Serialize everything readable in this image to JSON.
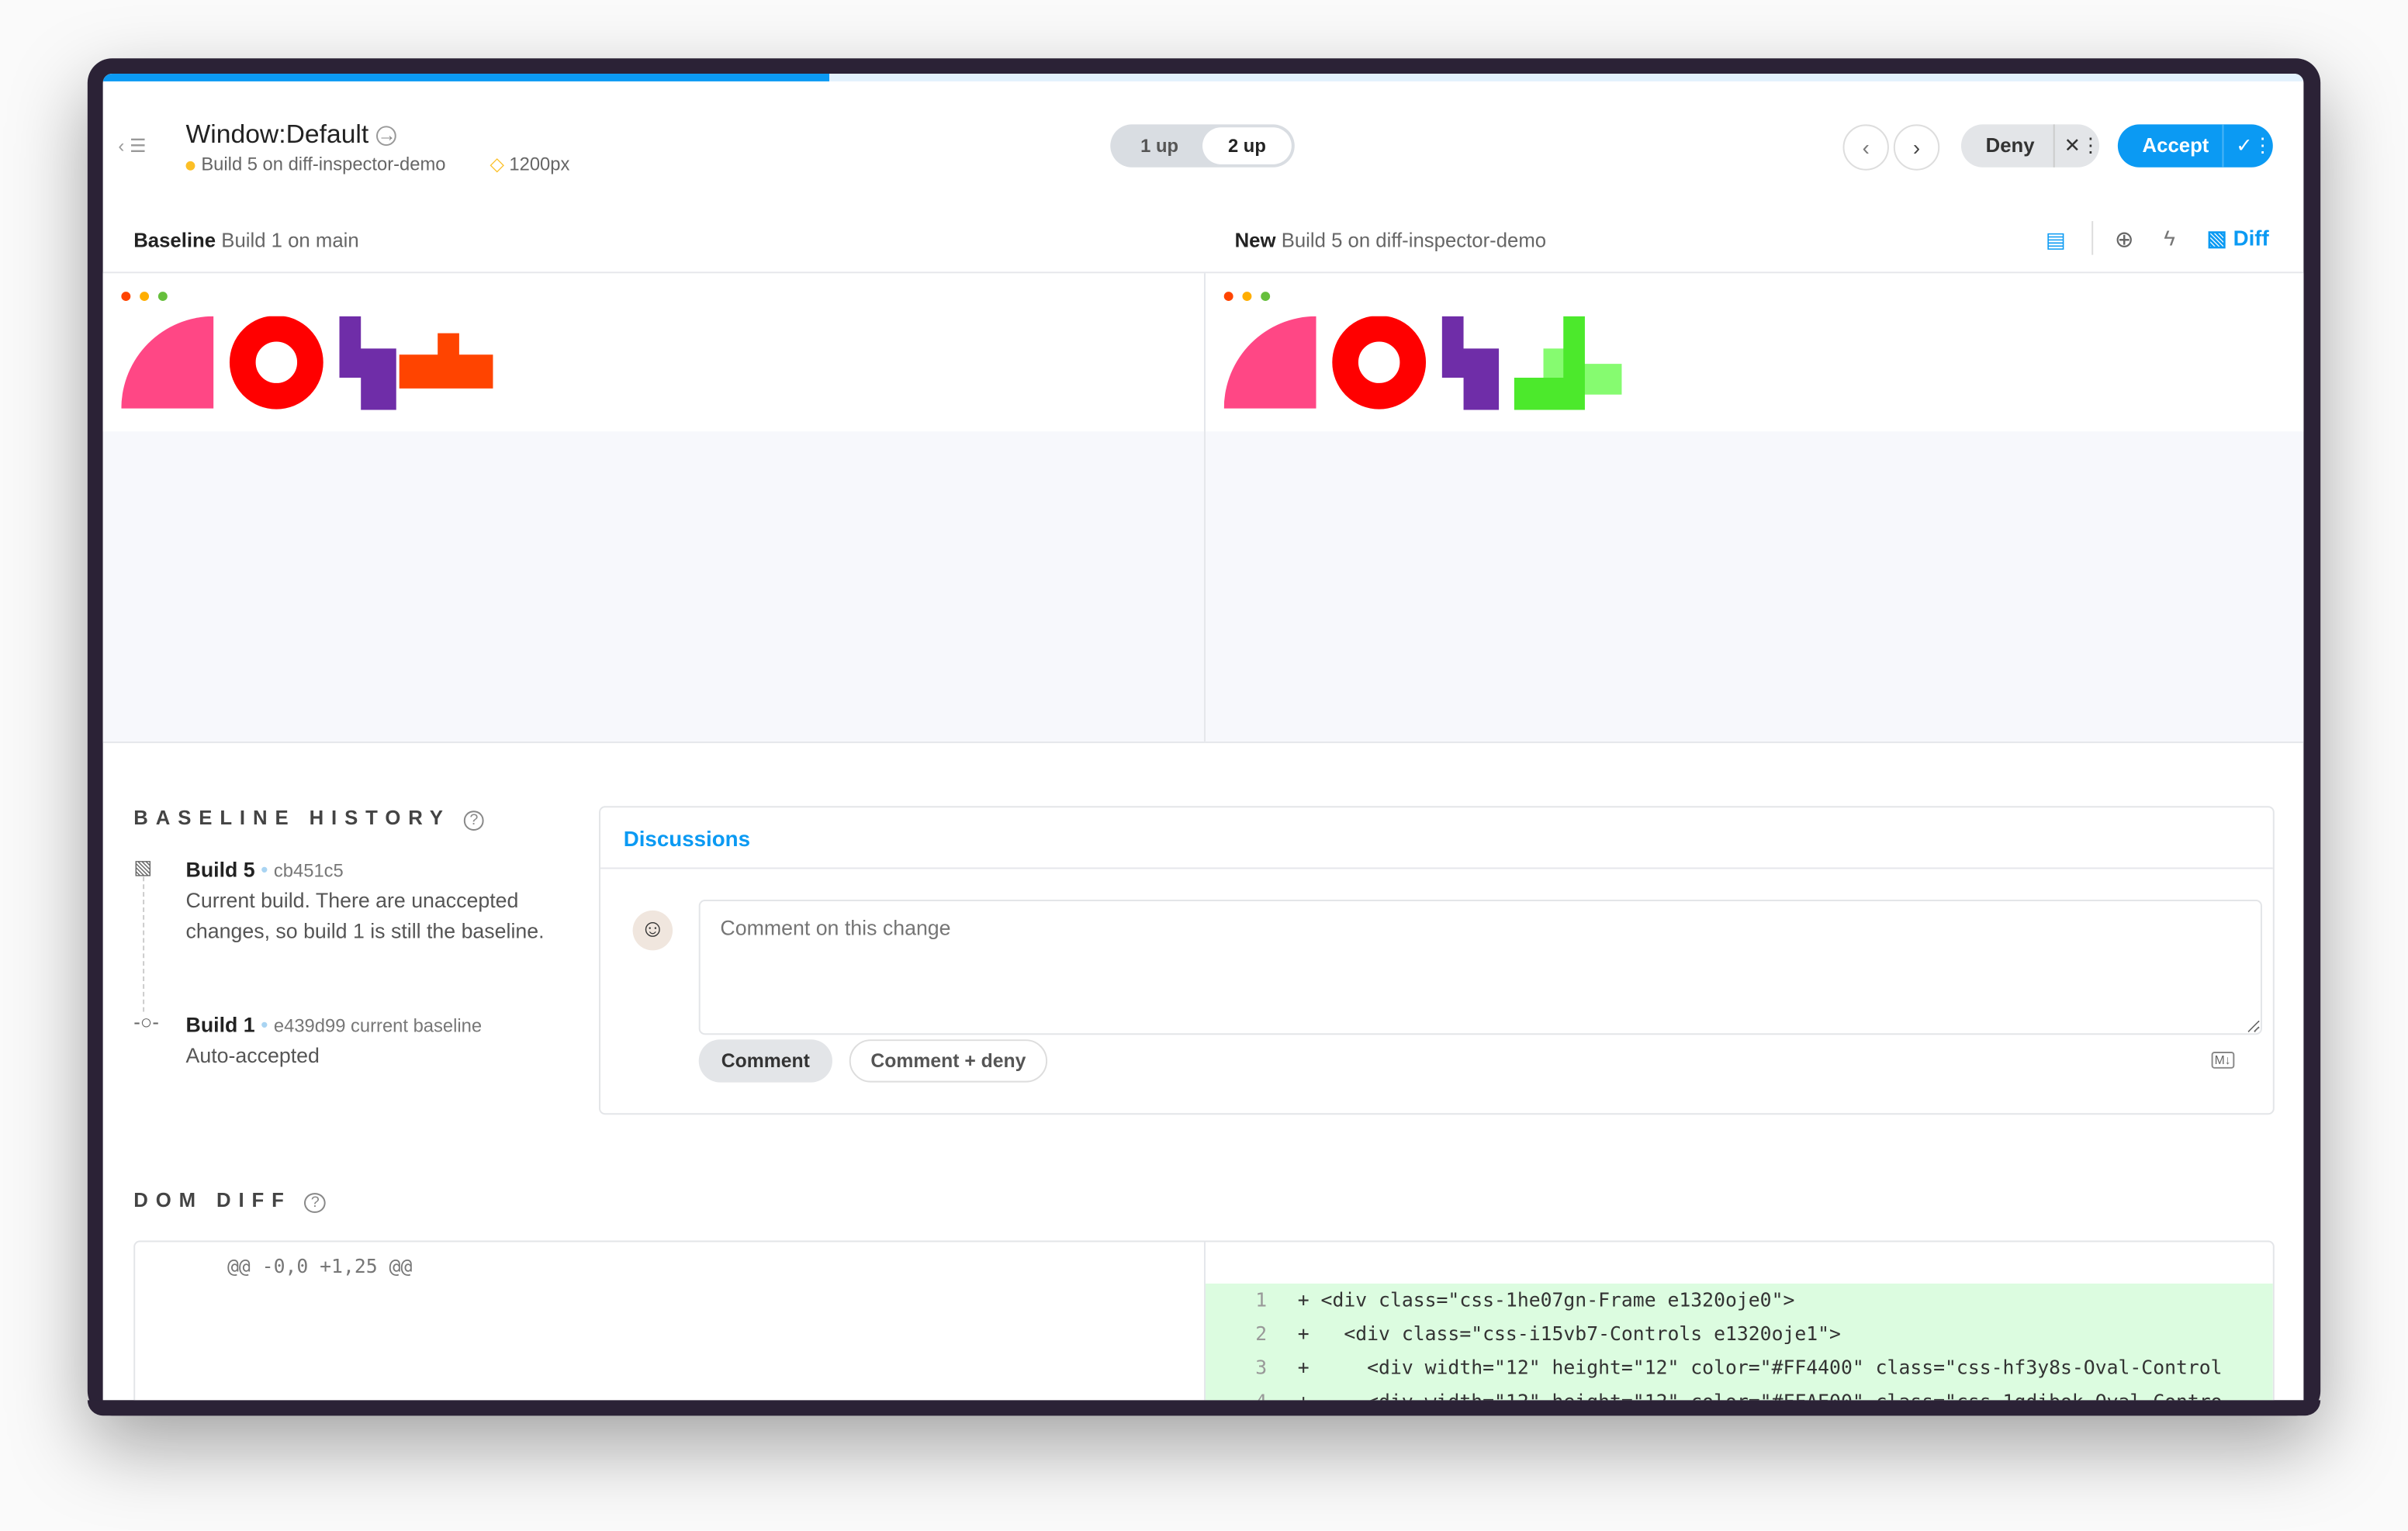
{
  "header": {
    "title_component": "Window",
    "title_story": "Default",
    "build_label": "Build 5 on diff-inspector-demo",
    "viewport": "1200px",
    "progress_percent": 33
  },
  "view_toggle": {
    "options": [
      "1 up",
      "2 up"
    ],
    "selected": "2 up"
  },
  "actions": {
    "deny": "Deny",
    "accept": "Accept"
  },
  "comparison": {
    "baseline_label": "Baseline",
    "baseline_value": "Build 1 on main",
    "new_label": "New",
    "new_value": "Build 5 on diff-inspector-demo",
    "diff_label": "Diff"
  },
  "colors": {
    "accent": "#0b9af3",
    "added_line_bg": "#dcfce0",
    "status_dot": "#fcbf26"
  },
  "baseline_history": {
    "title": "BASELINE HISTORY",
    "items": [
      {
        "build": "Build 5",
        "commit": "cb451c5",
        "tag": "",
        "description": "Current build. There are unaccepted changes, so build 1 is still the baseline."
      },
      {
        "build": "Build 1",
        "commit": "e439d99",
        "tag": "current baseline",
        "description": "Auto-accepted"
      }
    ]
  },
  "discussions": {
    "title": "Discussions",
    "placeholder": "Comment on this change",
    "comment_button": "Comment",
    "comment_deny_button": "Comment + deny",
    "markdown_badge": "M↓"
  },
  "dom_diff": {
    "title": "DOM DIFF",
    "hunk": "@@ -0,0 +1,25 @@",
    "lines": [
      {
        "n": "1",
        "text": "+ <div class=\"css-1he07gn-Frame e1320oje0\">"
      },
      {
        "n": "2",
        "text": "+   <div class=\"css-i15vb7-Controls e1320oje1\">"
      },
      {
        "n": "3",
        "text": "+     <div width=\"12\" height=\"12\" color=\"#FF4400\" class=\"css-hf3y8s-Oval-Control"
      },
      {
        "n": "4",
        "text": "+     <div width=\"12\" height=\"12\" color=\"#FFAE00\" class=\"css-1qdibok-Oval-Contro"
      }
    ]
  }
}
